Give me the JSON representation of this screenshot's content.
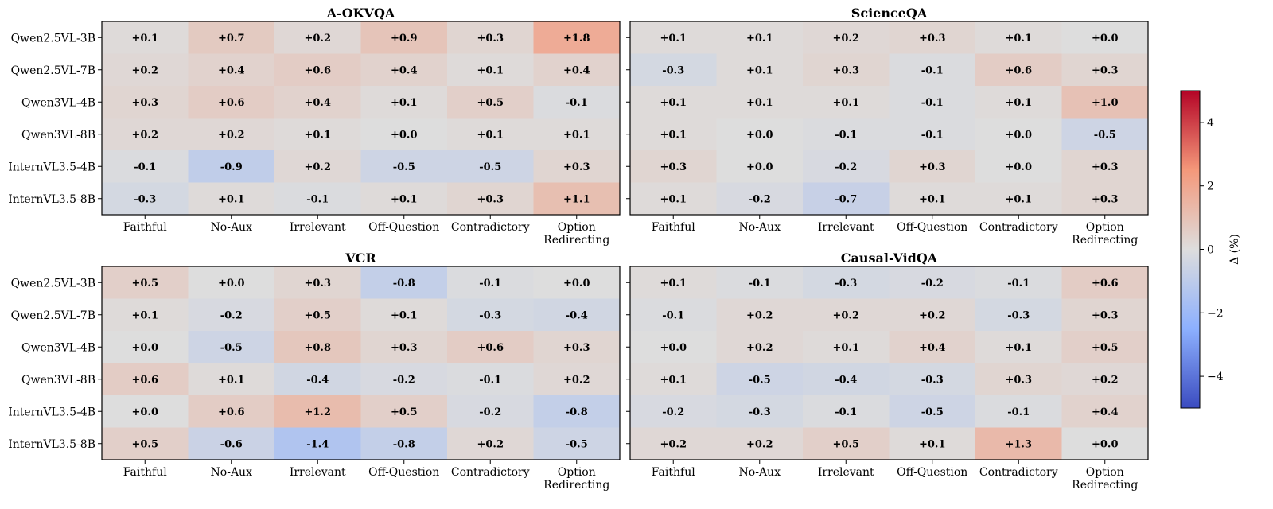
{
  "chart_data": [
    {
      "type": "heatmap",
      "title": "A-OKVQA",
      "rows": [
        "Qwen2.5VL-3B",
        "Qwen2.5VL-7B",
        "Qwen3VL-4B",
        "Qwen3VL-8B",
        "InternVL3.5-4B",
        "InternVL3.5-8B"
      ],
      "columns": [
        "Faithful",
        "No-Aux",
        "Irrelevant",
        "Off-Question",
        "Contradictory",
        "Option Redirecting"
      ],
      "values": [
        [
          0.1,
          0.7,
          0.2,
          0.9,
          0.3,
          1.8
        ],
        [
          0.2,
          0.4,
          0.6,
          0.4,
          0.1,
          0.4
        ],
        [
          0.3,
          0.6,
          0.4,
          0.1,
          0.5,
          -0.1
        ],
        [
          0.2,
          0.2,
          0.1,
          0.0,
          0.1,
          0.1
        ],
        [
          -0.1,
          -0.9,
          0.2,
          -0.5,
          -0.5,
          0.3
        ],
        [
          -0.3,
          0.1,
          -0.1,
          0.1,
          0.3,
          1.1
        ]
      ],
      "labels": [
        [
          "+0.1",
          "+0.7",
          "+0.2",
          "+0.9",
          "+0.3",
          "+1.8"
        ],
        [
          "+0.2",
          "+0.4",
          "+0.6",
          "+0.4",
          "+0.1",
          "+0.4"
        ],
        [
          "+0.3",
          "+0.6",
          "+0.4",
          "+0.1",
          "+0.5",
          "-0.1"
        ],
        [
          "+0.2",
          "+0.2",
          "+0.1",
          "+0.0",
          "+0.1",
          "+0.1"
        ],
        [
          "-0.1",
          "-0.9",
          "+0.2",
          "-0.5",
          "-0.5",
          "+0.3"
        ],
        [
          "-0.3",
          "+0.1",
          "-0.1",
          "+0.1",
          "+0.3",
          "+1.1"
        ]
      ]
    },
    {
      "type": "heatmap",
      "title": "ScienceQA",
      "rows": [
        "Qwen2.5VL-3B",
        "Qwen2.5VL-7B",
        "Qwen3VL-4B",
        "Qwen3VL-8B",
        "InternVL3.5-4B",
        "InternVL3.5-8B"
      ],
      "columns": [
        "Faithful",
        "No-Aux",
        "Irrelevant",
        "Off-Question",
        "Contradictory",
        "Option Redirecting"
      ],
      "values": [
        [
          0.1,
          0.1,
          0.2,
          0.3,
          0.1,
          0.0
        ],
        [
          -0.3,
          0.1,
          0.3,
          -0.1,
          0.6,
          0.3
        ],
        [
          0.1,
          0.1,
          0.1,
          -0.1,
          0.1,
          1.0
        ],
        [
          0.1,
          0.0,
          -0.1,
          -0.1,
          0.0,
          -0.5
        ],
        [
          0.3,
          0.0,
          -0.2,
          0.3,
          0.0,
          0.3
        ],
        [
          0.1,
          -0.2,
          -0.7,
          0.1,
          0.1,
          0.3
        ]
      ],
      "labels": [
        [
          "+0.1",
          "+0.1",
          "+0.2",
          "+0.3",
          "+0.1",
          "+0.0"
        ],
        [
          "-0.3",
          "+0.1",
          "+0.3",
          "-0.1",
          "+0.6",
          "+0.3"
        ],
        [
          "+0.1",
          "+0.1",
          "+0.1",
          "-0.1",
          "+0.1",
          "+1.0"
        ],
        [
          "+0.1",
          "+0.0",
          "-0.1",
          "-0.1",
          "+0.0",
          "-0.5"
        ],
        [
          "+0.3",
          "+0.0",
          "-0.2",
          "+0.3",
          "+0.0",
          "+0.3"
        ],
        [
          "+0.1",
          "-0.2",
          "-0.7",
          "+0.1",
          "+0.1",
          "+0.3"
        ]
      ]
    },
    {
      "type": "heatmap",
      "title": "VCR",
      "rows": [
        "Qwen2.5VL-3B",
        "Qwen2.5VL-7B",
        "Qwen3VL-4B",
        "Qwen3VL-8B",
        "InternVL3.5-4B",
        "InternVL3.5-8B"
      ],
      "columns": [
        "Faithful",
        "No-Aux",
        "Irrelevant",
        "Off-Question",
        "Contradictory",
        "Option Redirecting"
      ],
      "values": [
        [
          0.5,
          0.0,
          0.3,
          -0.8,
          -0.1,
          0.0
        ],
        [
          0.1,
          -0.2,
          0.5,
          0.1,
          -0.3,
          -0.4
        ],
        [
          0.0,
          -0.5,
          0.8,
          0.3,
          0.6,
          0.3
        ],
        [
          0.6,
          0.1,
          -0.4,
          -0.2,
          -0.1,
          0.2
        ],
        [
          0.0,
          0.6,
          1.2,
          0.5,
          -0.2,
          -0.8
        ],
        [
          0.5,
          -0.6,
          -1.4,
          -0.8,
          0.2,
          -0.5
        ]
      ],
      "labels": [
        [
          "+0.5",
          "+0.0",
          "+0.3",
          "-0.8",
          "-0.1",
          "+0.0"
        ],
        [
          "+0.1",
          "-0.2",
          "+0.5",
          "+0.1",
          "-0.3",
          "-0.4"
        ],
        [
          "+0.0",
          "-0.5",
          "+0.8",
          "+0.3",
          "+0.6",
          "+0.3"
        ],
        [
          "+0.6",
          "+0.1",
          "-0.4",
          "-0.2",
          "-0.1",
          "+0.2"
        ],
        [
          "+0.0",
          "+0.6",
          "+1.2",
          "+0.5",
          "-0.2",
          "-0.8"
        ],
        [
          "+0.5",
          "-0.6",
          "-1.4",
          "-0.8",
          "+0.2",
          "-0.5"
        ]
      ]
    },
    {
      "type": "heatmap",
      "title": "Causal-VidQA",
      "rows": [
        "Qwen2.5VL-3B",
        "Qwen2.5VL-7B",
        "Qwen3VL-4B",
        "Qwen3VL-8B",
        "InternVL3.5-4B",
        "InternVL3.5-8B"
      ],
      "columns": [
        "Faithful",
        "No-Aux",
        "Irrelevant",
        "Off-Question",
        "Contradictory",
        "Option Redirecting"
      ],
      "values": [
        [
          0.1,
          -0.1,
          -0.3,
          -0.2,
          -0.1,
          0.6
        ],
        [
          -0.1,
          0.2,
          0.2,
          0.2,
          -0.3,
          0.3
        ],
        [
          0.0,
          0.2,
          0.1,
          0.4,
          0.1,
          0.5
        ],
        [
          0.1,
          -0.5,
          -0.4,
          -0.3,
          0.3,
          0.2
        ],
        [
          -0.2,
          -0.3,
          -0.1,
          -0.5,
          -0.1,
          0.4
        ],
        [
          0.2,
          0.2,
          0.5,
          0.1,
          1.3,
          0.0
        ]
      ],
      "labels": [
        [
          "+0.1",
          "-0.1",
          "-0.3",
          "-0.2",
          "-0.1",
          "+0.6"
        ],
        [
          "-0.1",
          "+0.2",
          "+0.2",
          "+0.2",
          "-0.3",
          "+0.3"
        ],
        [
          "+0.0",
          "+0.2",
          "+0.1",
          "+0.4",
          "+0.1",
          "+0.5"
        ],
        [
          "+0.1",
          "-0.5",
          "-0.4",
          "-0.3",
          "+0.3",
          "+0.2"
        ],
        [
          "-0.2",
          "-0.3",
          "-0.1",
          "-0.5",
          "-0.1",
          "+0.4"
        ],
        [
          "+0.2",
          "+0.2",
          "+0.5",
          "+0.1",
          "+1.3",
          "+0.0"
        ]
      ]
    }
  ],
  "colorbar": {
    "label": "Δ (%)",
    "range": [
      -5,
      5
    ],
    "ticks": [
      -4,
      -2,
      0,
      2,
      4
    ],
    "tick_labels": [
      "−4",
      "−2",
      "0",
      "2",
      "4"
    ],
    "colormap": "coolwarm",
    "colors": [
      "#3b4cc0",
      "#dddddd",
      "#b40426"
    ]
  }
}
